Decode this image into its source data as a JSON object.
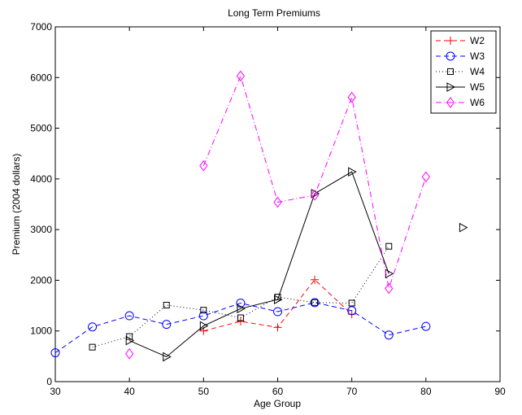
{
  "chart_data": {
    "type": "line",
    "title": "Long Term Premiums",
    "xlabel": "Age Group",
    "ylabel": "Premium (2004 dollars)",
    "xlim": [
      30,
      90
    ],
    "ylim": [
      0,
      7000
    ],
    "xticks": [
      30,
      40,
      50,
      60,
      70,
      80,
      90
    ],
    "yticks": [
      0,
      1000,
      2000,
      3000,
      4000,
      5000,
      6000,
      7000
    ],
    "grid": false,
    "legend_position": "top-right",
    "series": [
      {
        "name": "W2",
        "color": "#ff0000",
        "line_style": "dashed",
        "marker": "plus",
        "points": [
          [
            50,
            1000
          ],
          [
            55,
            1190
          ],
          [
            60,
            1070
          ],
          [
            65,
            2010
          ],
          [
            70,
            1330
          ]
        ]
      },
      {
        "name": "W3",
        "color": "#0000ff",
        "line_style": "dashed",
        "marker": "circle",
        "points": [
          [
            30,
            570
          ],
          [
            35,
            1080
          ],
          [
            40,
            1300
          ],
          [
            45,
            1130
          ],
          [
            50,
            1300
          ],
          [
            55,
            1550
          ],
          [
            60,
            1380
          ],
          [
            65,
            1560
          ],
          [
            70,
            1400
          ],
          [
            75,
            920
          ],
          [
            80,
            1090
          ]
        ]
      },
      {
        "name": "W4",
        "color": "#000000",
        "line_style": "dotted",
        "marker": "square",
        "points": [
          [
            35,
            680
          ],
          [
            40,
            890
          ],
          [
            45,
            1510
          ],
          [
            50,
            1410
          ],
          [
            55,
            1260
          ],
          [
            60,
            1670
          ],
          [
            65,
            1560
          ],
          [
            70,
            1550
          ],
          [
            75,
            2670
          ]
        ]
      },
      {
        "name": "W5",
        "color": "#000000",
        "line_style": "solid",
        "marker": "triangle-right",
        "points": [
          [
            40,
            810
          ],
          [
            45,
            490
          ],
          [
            50,
            1100
          ],
          [
            55,
            1440
          ],
          [
            60,
            1620
          ],
          [
            65,
            3710
          ],
          [
            70,
            4140
          ],
          [
            75,
            2130
          ],
          [
            85,
            3040
          ]
        ],
        "unconnected_last": true
      },
      {
        "name": "W6",
        "color": "#ff00ff",
        "line_style": "dashdot",
        "marker": "diamond",
        "points": [
          [
            40,
            550
          ],
          [
            50,
            4260
          ],
          [
            55,
            6030
          ],
          [
            60,
            3540
          ],
          [
            65,
            3680
          ],
          [
            70,
            5610
          ],
          [
            75,
            1840
          ],
          [
            80,
            4040
          ]
        ],
        "unconnected_first": true
      }
    ]
  }
}
